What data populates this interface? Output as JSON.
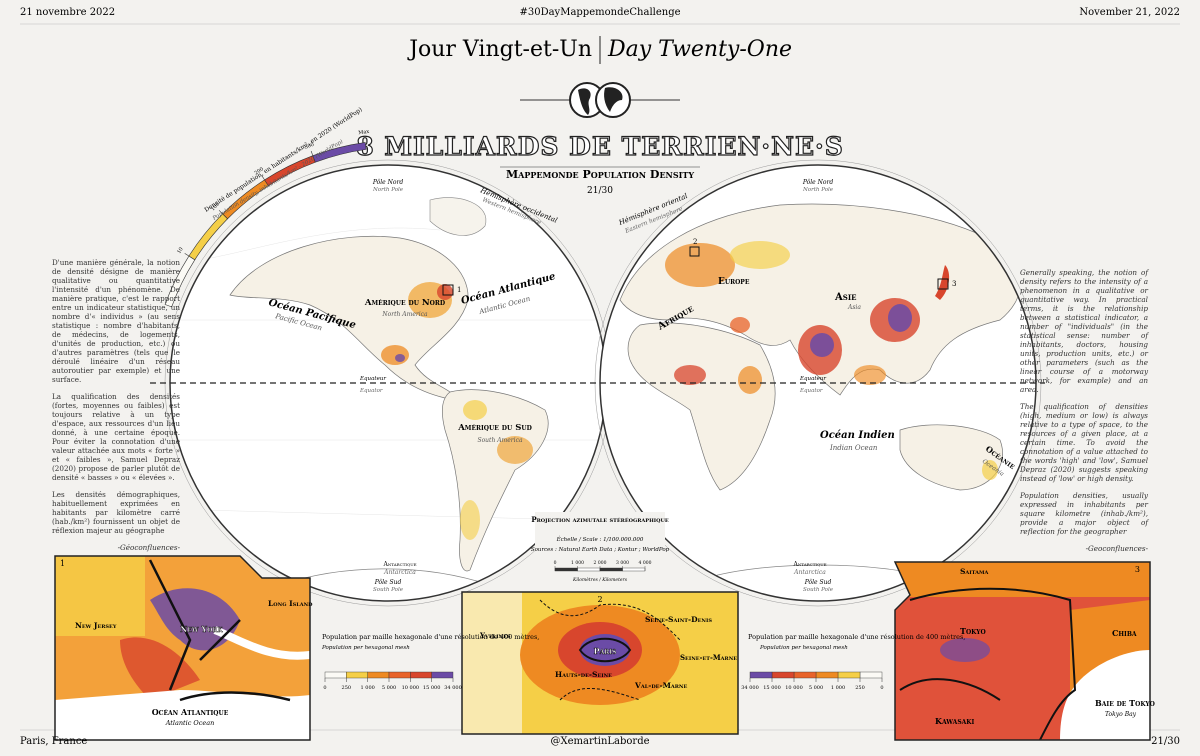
{
  "header": {
    "date_fr": "21 novembre 2022",
    "hashtag": "#30DayMappemondeChallenge",
    "date_en": "November 21, 2022"
  },
  "title": {
    "fr": "Jour Vingt-et-Un",
    "en": "Day Twenty-One"
  },
  "main_title": "8 MILLIARDS DE TERRIEN·NE·S",
  "subtitle": "Mappemonde Population Density",
  "counter": "21/30",
  "density_legend": {
    "title_fr": "Densité de population, en habitants/km², en 2020 (WorldPop)",
    "title_en": "Population density, inhabitants/km² - 2020 (WorldPop)",
    "colors": [
      "#fbfaf5",
      "#f5cf47",
      "#ee8a22",
      "#d8462d",
      "#6b4ba6"
    ],
    "ticks": [
      10,
      100,
      200,
      300
    ],
    "max_label": "Max"
  },
  "hemispheres": {
    "west": {
      "fr": "Hémisphère occidental",
      "en": "Western hemisphere"
    },
    "east": {
      "fr": "Hémisphère oriental",
      "en": "Eastern hemisphere"
    },
    "north_pole": {
      "fr": "Pôle Nord",
      "en": "North Pole"
    },
    "south_pole": {
      "fr": "Pôle Sud",
      "en": "South Pole"
    },
    "antarctica": {
      "fr": "Antarctique",
      "en": "Antarctica"
    },
    "equator": {
      "fr": "Equateur",
      "en": "Equator"
    }
  },
  "places": {
    "pacific": {
      "fr": "Océan Pacifique",
      "en": "Pacific Ocean"
    },
    "atlantic": {
      "fr": "Océan Atlantique",
      "en": "Atlantic Ocean"
    },
    "north_america": {
      "fr": "Amérique du Nord",
      "en": "North America"
    },
    "south_america": {
      "fr": "Amérique du Sud",
      "en": "South America"
    },
    "africa": {
      "fr": "Afrique",
      "en": "Africa"
    },
    "europe": {
      "fr": "Europe",
      "en": "Europe"
    },
    "asia": {
      "fr": "Asie",
      "en": "Asia"
    },
    "indian": {
      "fr": "Océan Indien",
      "en": "Indian Ocean"
    },
    "oceania": {
      "fr": "Océanie",
      "en": "Oceania"
    }
  },
  "text_fr": {
    "paragraphs": [
      "D'une manière générale, la notion de densité désigne de manière qualitative ou quantitative l'intensité d'un phénomène. De manière pratique, c'est le rapport entre un indicateur statistique, un nombre d'« individus » (au sens statistique : nombre d'habitants, de médecins, de logements, d'unités de production, etc.) ou d'autres paramètres (tels que le déroulé linéaire d'un réseau autoroutier par exemple) et une surface.",
      "La qualification des densités (fortes, moyennes ou faibles) est toujours relative à un type d'espace, aux ressources d'un lieu donné, à une certaine époque. Pour éviter la connotation d'une valeur attachée aux mots « forte » et « faibles », Samuel Depraz (2020) propose de parler plutôt de densité « basses » ou « élevées ».",
      "Les densités démographiques, habituellement exprimées en habitants par kilomètre carré (hab./km²) fournissent un objet de réflexion majeur au géographe"
    ],
    "source": "-Géoconfluences-"
  },
  "text_en": {
    "paragraphs": [
      "Generally speaking, the notion of density refers to the intensity of a phenomenon in a qualitative or quantitative way. In practical terms, it is the relationship between a statistical indicator, a number of \"individuals\" (in the statistical sense: number of inhabitants, doctors, housing units, production units, etc.) or other parameters (such as the linear course of a motorway network, for example) and an area.",
      "The qualification of densities (high, medium or low) is always relative to a type of space, to the resources of a given place, at a certain time. To avoid the connotation of a value attached to the words 'high' and 'low', Samuel Depraz (2020) suggests speaking instead of 'low' or high density.",
      "Population densities, usually expressed in inhabitants per square kilometre (inhab./km²), provide a major object of reflection for the geographer"
    ],
    "source": "-Geoconfluences-"
  },
  "projection": {
    "title": "Projection azimutale stéréographique",
    "scale": "Échelle / Scale : 1/100.000.000",
    "sources": "Sources : Natural Earth Data ; Kontur ; WorldPop",
    "scale_ticks": [
      0,
      {
        "value": 1000,
        "label": "1 000"
      },
      {
        "value": 2000,
        "label": "2 000"
      },
      {
        "value": 3000,
        "label": "3 000"
      },
      {
        "value": 4000,
        "label": "4 000"
      }
    ],
    "scale_unit": "Kilomètres / Kilometers"
  },
  "insets": [
    {
      "number": 1,
      "labels": [
        "New Jersey",
        "New York",
        "Long Island",
        "Océan Atlantique",
        "Atlantic Ocean"
      ]
    },
    {
      "number": 2,
      "labels": [
        "Yvelines",
        "Seine-Saint-Denis",
        "Paris",
        "Hauts-de-Seine",
        "Val-de-Marne",
        "Seine-et-Marne"
      ]
    },
    {
      "number": 3,
      "labels": [
        "Saitama",
        "Tokyo",
        "Chiba",
        "Kawasaki",
        "Baie de Tokyo",
        "Tokyo Bay"
      ]
    }
  ],
  "hex_legend": {
    "title_fr": "Population par maille hexagonale d'une résolution de 400 mètres,",
    "title_en": "Population per hexagonal mesh",
    "colors": [
      "#fbfaf5",
      "#f5cf47",
      "#ee8a22",
      "#e8632a",
      "#d8462d",
      "#6b4ba6"
    ],
    "ticks": [
      0,
      250,
      {
        "value": 1000,
        "label": "1 000"
      },
      {
        "value": 5000,
        "label": "5 000"
      },
      {
        "value": 10000,
        "label": "10 000"
      },
      {
        "value": 15000,
        "label": "15 000"
      },
      {
        "value": 34000,
        "label": "34 000"
      }
    ]
  },
  "footer": {
    "left": "Paris, France",
    "center": "@XemartinLaborde",
    "right": "21/30"
  }
}
